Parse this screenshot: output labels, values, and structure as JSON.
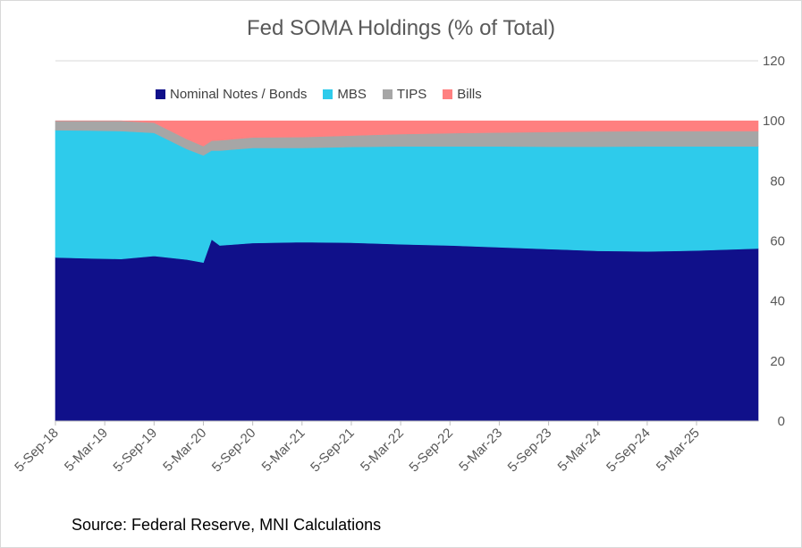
{
  "chart_data": {
    "type": "area",
    "stacked": true,
    "title": "Fed SOMA Holdings (% of Total)",
    "xlabel": "",
    "ylabel": "",
    "ylim": [
      0,
      120
    ],
    "yticks": [
      0,
      20,
      40,
      60,
      80,
      100,
      120
    ],
    "y_axis_side": "right",
    "x_tick_labels": [
      "5-Sep-18",
      "5-Mar-19",
      "5-Sep-19",
      "5-Mar-20",
      "5-Sep-20",
      "5-Mar-21",
      "5-Sep-21",
      "5-Mar-22",
      "5-Sep-22",
      "5-Mar-23",
      "5-Sep-23",
      "5-Mar-24",
      "5-Sep-24",
      "5-Mar-25"
    ],
    "x_months": [
      0,
      2,
      4,
      6,
      8,
      12,
      13,
      14,
      16,
      17,
      18,
      19,
      21,
      24,
      30,
      36,
      42,
      48,
      54,
      60,
      66,
      72,
      78,
      84,
      90,
      96,
      102,
      84.1
    ],
    "x_end_month": 85.5,
    "legend_position": "top",
    "series": [
      {
        "name": "Nominal Notes / Bonds",
        "color": "#10108a",
        "points": [
          [
            0,
            54.5
          ],
          [
            4,
            54.2
          ],
          [
            8,
            54.0
          ],
          [
            12,
            55.0
          ],
          [
            16,
            53.8
          ],
          [
            18,
            52.8
          ],
          [
            19,
            60.5
          ],
          [
            20,
            58.5
          ],
          [
            24,
            59.3
          ],
          [
            30,
            59.6
          ],
          [
            36,
            59.4
          ],
          [
            42,
            58.9
          ],
          [
            48,
            58.5
          ],
          [
            54,
            57.9
          ],
          [
            60,
            57.3
          ],
          [
            66,
            56.7
          ],
          [
            72,
            56.5
          ],
          [
            78,
            56.8
          ],
          [
            85.5,
            57.5
          ]
        ]
      },
      {
        "name": "MBS",
        "color": "#2ecbeb",
        "points": [
          [
            0,
            42.4
          ],
          [
            4,
            42.6
          ],
          [
            8,
            42.6
          ],
          [
            12,
            41.0
          ],
          [
            16,
            36.8
          ],
          [
            18,
            35.7
          ],
          [
            19,
            29.6
          ],
          [
            20,
            31.6
          ],
          [
            24,
            31.7
          ],
          [
            30,
            31.4
          ],
          [
            36,
            31.9
          ],
          [
            42,
            32.6
          ],
          [
            48,
            33.0
          ],
          [
            54,
            33.6
          ],
          [
            60,
            34.1
          ],
          [
            66,
            34.7
          ],
          [
            72,
            35.0
          ],
          [
            78,
            34.7
          ],
          [
            85.5,
            34.0
          ]
        ]
      },
      {
        "name": "TIPS",
        "color": "#a6a6a6",
        "points": [
          [
            0,
            3.1
          ],
          [
            4,
            3.2
          ],
          [
            8,
            3.4
          ],
          [
            12,
            3.4
          ],
          [
            16,
            3.3
          ],
          [
            18,
            3.1
          ],
          [
            19,
            3.3
          ],
          [
            20,
            3.4
          ],
          [
            24,
            3.5
          ],
          [
            30,
            3.6
          ],
          [
            36,
            3.8
          ],
          [
            42,
            4.1
          ],
          [
            48,
            4.4
          ],
          [
            54,
            4.6
          ],
          [
            60,
            4.9
          ],
          [
            66,
            5.1
          ],
          [
            72,
            5.1
          ],
          [
            78,
            5.1
          ],
          [
            85.5,
            5.1
          ]
        ]
      },
      {
        "name": "Bills",
        "color": "#ff8080",
        "points": [
          [
            0,
            0
          ],
          [
            4,
            0
          ],
          [
            8,
            0
          ],
          [
            12,
            0.6
          ],
          [
            16,
            6.1
          ],
          [
            18,
            8.4
          ],
          [
            19,
            6.6
          ],
          [
            20,
            6.5
          ],
          [
            24,
            5.5
          ],
          [
            30,
            5.4
          ],
          [
            36,
            4.9
          ],
          [
            42,
            4.4
          ],
          [
            48,
            4.1
          ],
          [
            54,
            3.9
          ],
          [
            60,
            3.7
          ],
          [
            66,
            3.5
          ],
          [
            72,
            3.4
          ],
          [
            78,
            3.4
          ],
          [
            85.5,
            3.4
          ]
        ]
      }
    ]
  },
  "source": "Source: Federal Reserve, MNI Calculations"
}
